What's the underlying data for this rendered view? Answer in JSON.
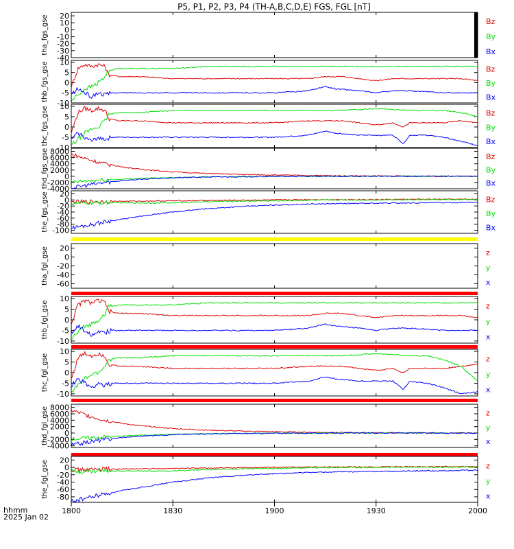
{
  "title": "P5, P1, P2, P3, P4 (TH-A,B,C,D,E) FGS, FGL [nT]",
  "colors": {
    "x": "#0000ff",
    "y": "#00dd00",
    "z": "#dd0000",
    "flag_yellow": "#ffff00",
    "flag_red": "#ff0000"
  },
  "x_axis": {
    "ticks": [
      {
        "label": "1800",
        "minutes": 0
      },
      {
        "label": "1830",
        "minutes": 30
      },
      {
        "label": "1900",
        "minutes": 60
      },
      {
        "label": "1930",
        "minutes": 90
      },
      {
        "label": "2000",
        "minutes": 120
      }
    ],
    "range_minutes": [
      0,
      120
    ],
    "label_units": "hhmm",
    "label_date": "2025 Jan 02"
  },
  "chart_data": [
    {
      "type": "line",
      "ylabel": "tha_fgs_gse",
      "ylim": [
        -40,
        25
      ],
      "yticks": [
        20,
        10,
        0,
        -10,
        -20,
        -30,
        -40
      ],
      "legend": [
        "Bz",
        "By",
        "Bx"
      ],
      "no_data": true,
      "series": []
    },
    {
      "type": "line",
      "ylabel": "thb_fgs_gse",
      "ylim": [
        -10,
        11
      ],
      "yticks": [
        10,
        5,
        0,
        -5,
        -10
      ],
      "legend": [
        "Bz",
        "By",
        "Bx"
      ],
      "series": [
        {
          "comp": "z",
          "x": [
            0,
            2,
            4,
            6,
            8,
            10,
            11,
            14,
            20,
            30,
            40,
            50,
            60,
            70,
            75,
            80,
            85,
            90,
            95,
            100,
            105,
            110,
            115,
            120
          ],
          "y": [
            -2,
            7,
            9,
            8,
            9,
            8,
            4,
            3,
            3,
            2,
            2,
            2,
            2,
            2,
            3,
            3,
            2,
            1,
            2,
            2,
            2,
            2,
            2,
            1
          ]
        },
        {
          "comp": "y",
          "x": [
            0,
            2,
            4,
            6,
            8,
            10,
            11,
            14,
            20,
            30,
            40,
            50,
            60,
            70,
            80,
            90,
            100,
            110,
            120
          ],
          "y": [
            -9,
            -6,
            -3,
            -2,
            0,
            3,
            6,
            7,
            7,
            7,
            8,
            8,
            8,
            8,
            8,
            8,
            8,
            8,
            8
          ]
        },
        {
          "comp": "x",
          "x": [
            0,
            2,
            4,
            6,
            8,
            10,
            12,
            20,
            30,
            40,
            50,
            60,
            70,
            75,
            78,
            85,
            90,
            95,
            100,
            110,
            115,
            120
          ],
          "y": [
            -6,
            -3,
            -5,
            -7,
            -5,
            -6,
            -5,
            -5,
            -5,
            -5,
            -5,
            -5,
            -4,
            -2,
            -3,
            -4,
            -5,
            -4,
            -4,
            -5,
            -5,
            -5
          ]
        }
      ]
    },
    {
      "type": "line",
      "ylabel": "thc_fgs_gse",
      "ylim": [
        -10,
        11
      ],
      "yticks": [
        10,
        5,
        0,
        -5,
        -10
      ],
      "legend": [
        "Bz",
        "By",
        "Bx"
      ],
      "series": [
        {
          "comp": "z",
          "x": [
            0,
            2,
            4,
            6,
            8,
            10,
            11,
            14,
            20,
            30,
            40,
            50,
            60,
            70,
            80,
            85,
            90,
            95,
            98,
            100,
            105,
            110,
            115,
            120
          ],
          "y": [
            -3,
            7,
            9,
            8,
            9,
            8,
            4,
            3,
            3,
            2,
            2,
            2,
            2,
            3,
            3,
            2,
            1,
            2,
            0,
            2,
            2,
            2,
            3,
            2
          ]
        },
        {
          "comp": "y",
          "x": [
            0,
            2,
            4,
            6,
            8,
            10,
            11,
            14,
            20,
            30,
            40,
            50,
            60,
            70,
            80,
            90,
            100,
            105,
            110,
            115,
            120
          ],
          "y": [
            -9,
            -6,
            -3,
            -1,
            0,
            3,
            6,
            7,
            7,
            8,
            8,
            8,
            8,
            8,
            8,
            9,
            8,
            8,
            8,
            7,
            5
          ]
        },
        {
          "comp": "x",
          "x": [
            0,
            2,
            4,
            6,
            8,
            10,
            12,
            20,
            30,
            40,
            50,
            60,
            70,
            75,
            78,
            85,
            90,
            95,
            98,
            100,
            105,
            110,
            115,
            120
          ],
          "y": [
            -6,
            -3,
            -5,
            -7,
            -5,
            -6,
            -5,
            -5,
            -5,
            -5,
            -5,
            -5,
            -4,
            -2,
            -3,
            -4,
            -4,
            -4,
            -8,
            -4,
            -4,
            -5,
            -7,
            -9
          ]
        }
      ]
    },
    {
      "type": "line",
      "ylabel": "thd_fgs_gse",
      "ylim": [
        -4000,
        9000
      ],
      "yticks": [
        8000,
        6000,
        4000,
        2000,
        0,
        -2000,
        -4000
      ],
      "legend": [
        "Bz",
        "By",
        "Bx"
      ],
      "series": [
        {
          "comp": "z",
          "x": [
            0,
            5,
            10,
            15,
            20,
            30,
            40,
            50,
            60,
            70,
            80,
            90,
            100,
            110,
            120
          ],
          "y": [
            7100,
            5400,
            4000,
            3000,
            2300,
            1400,
            900,
            600,
            400,
            250,
            150,
            100,
            50,
            20,
            0
          ]
        },
        {
          "comp": "y",
          "x": [
            0,
            10,
            20,
            30,
            40,
            60,
            80,
            100,
            120
          ],
          "y": [
            -1900,
            -1200,
            -700,
            -400,
            -200,
            -50,
            0,
            0,
            0
          ]
        },
        {
          "comp": "x",
          "x": [
            0,
            5,
            10,
            15,
            20,
            30,
            40,
            60,
            80,
            100,
            120
          ],
          "y": [
            -3800,
            -2800,
            -2000,
            -1400,
            -1000,
            -500,
            -250,
            -60,
            -10,
            0,
            0
          ]
        }
      ]
    },
    {
      "type": "line",
      "ylabel": "the_fgs_gse",
      "ylim": [
        -110,
        30
      ],
      "yticks": [
        20,
        0,
        -20,
        -40,
        -60,
        -80,
        -100
      ],
      "legend": [
        "Bz",
        "By",
        "Bx"
      ],
      "series": [
        {
          "comp": "z",
          "x": [
            0,
            10,
            20,
            30,
            40,
            50,
            60,
            70,
            80,
            90,
            100,
            110,
            120
          ],
          "y": [
            -7,
            -5,
            -4,
            -3,
            -2,
            -1,
            0,
            1,
            1,
            1,
            2,
            2,
            2
          ]
        },
        {
          "comp": "y",
          "x": [
            0,
            10,
            20,
            30,
            40,
            50,
            60,
            70,
            80,
            90,
            100,
            110,
            120
          ],
          "y": [
            -12,
            -9,
            -10,
            -10,
            -6,
            -4,
            -3,
            -1,
            0,
            0,
            1,
            1,
            1
          ]
        },
        {
          "comp": "x",
          "x": [
            0,
            5,
            10,
            20,
            30,
            40,
            50,
            60,
            70,
            80,
            90,
            100,
            110,
            120
          ],
          "y": [
            -92,
            -83,
            -72,
            -55,
            -40,
            -29,
            -22,
            -17,
            -14,
            -12,
            -11,
            -10,
            -9,
            -8
          ]
        }
      ]
    },
    {
      "type": "line",
      "ylabel": "tha_fgl_gse",
      "ylim": [
        -70,
        30
      ],
      "yticks": [
        20,
        0,
        -20,
        -40,
        -60
      ],
      "legend": [
        "z",
        "y",
        "x"
      ],
      "flag": "yellow",
      "no_data": true,
      "series": []
    },
    {
      "type": "line",
      "ylabel": "thb_fgl_gse",
      "ylim": [
        -11,
        11
      ],
      "yticks": [
        10,
        5,
        0,
        -5,
        -10
      ],
      "legend": [
        "z",
        "y",
        "x"
      ],
      "flag": "red",
      "series": [
        {
          "comp": "z",
          "x": [
            0,
            2,
            4,
            6,
            8,
            10,
            11,
            14,
            20,
            30,
            40,
            50,
            60,
            70,
            75,
            80,
            85,
            90,
            95,
            100,
            105,
            110,
            115,
            120
          ],
          "y": [
            -2,
            7,
            9,
            8,
            9,
            8,
            4,
            3,
            3,
            2,
            2,
            2,
            2,
            2,
            3,
            3,
            2,
            1,
            2,
            2,
            2,
            2,
            2,
            1
          ]
        },
        {
          "comp": "y",
          "x": [
            0,
            2,
            4,
            6,
            8,
            10,
            11,
            14,
            20,
            30,
            40,
            50,
            60,
            70,
            80,
            90,
            100,
            110,
            120
          ],
          "y": [
            -9,
            -6,
            -3,
            -2,
            0,
            3,
            6,
            7,
            7,
            7,
            8,
            8,
            8,
            8,
            8,
            8,
            8,
            8,
            8
          ]
        },
        {
          "comp": "x",
          "x": [
            0,
            2,
            4,
            6,
            8,
            10,
            12,
            20,
            30,
            40,
            50,
            60,
            70,
            75,
            78,
            85,
            90,
            95,
            100,
            110,
            115,
            120
          ],
          "y": [
            -6,
            -3,
            -5,
            -7,
            -5,
            -6,
            -5,
            -5,
            -5,
            -5,
            -5,
            -5,
            -4,
            -2,
            -3,
            -4,
            -5,
            -4,
            -4,
            -5,
            -5,
            -5
          ]
        }
      ]
    },
    {
      "type": "line",
      "ylabel": "thc_fgl_gse",
      "ylim": [
        -11,
        11
      ],
      "yticks": [
        10,
        5,
        0,
        -5,
        -10
      ],
      "legend": [
        "z",
        "y",
        "x"
      ],
      "flag": "red",
      "series": [
        {
          "comp": "z",
          "x": [
            0,
            2,
            4,
            6,
            8,
            10,
            11,
            14,
            20,
            30,
            40,
            50,
            60,
            70,
            80,
            85,
            90,
            95,
            98,
            100,
            105,
            110,
            115,
            120
          ],
          "y": [
            -3,
            7,
            9,
            8,
            9,
            8,
            4,
            3,
            3,
            2,
            2,
            2,
            2,
            3,
            3,
            2,
            1,
            2,
            0,
            2,
            2,
            2,
            3,
            4
          ]
        },
        {
          "comp": "y",
          "x": [
            0,
            2,
            4,
            6,
            8,
            10,
            11,
            14,
            20,
            30,
            40,
            50,
            60,
            70,
            80,
            90,
            100,
            105,
            110,
            115,
            120
          ],
          "y": [
            -9,
            -6,
            -3,
            -1,
            0,
            3,
            6,
            7,
            7,
            8,
            8,
            8,
            8,
            8,
            8,
            9,
            8,
            8,
            6,
            3,
            -4
          ]
        },
        {
          "comp": "x",
          "x": [
            0,
            2,
            4,
            6,
            8,
            10,
            12,
            20,
            30,
            40,
            50,
            60,
            70,
            75,
            78,
            85,
            90,
            95,
            98,
            100,
            105,
            110,
            115,
            120
          ],
          "y": [
            -6,
            -3,
            -5,
            -7,
            -5,
            -6,
            -5,
            -5,
            -5,
            -5,
            -5,
            -5,
            -4,
            -2,
            -3,
            -4,
            -4,
            -4,
            -8,
            -4,
            -5,
            -7,
            -10,
            -9
          ]
        }
      ]
    },
    {
      "type": "line",
      "ylabel": "thd_fgl_gse",
      "ylim": [
        -4500,
        9000
      ],
      "yticks": [
        8000,
        6000,
        4000,
        2000,
        0,
        -2000,
        -4000
      ],
      "legend": [
        "z",
        "y",
        "x"
      ],
      "flag": "red",
      "series": [
        {
          "comp": "z",
          "x": [
            0,
            5,
            10,
            15,
            20,
            30,
            40,
            50,
            60,
            70,
            80,
            90,
            100,
            110,
            120
          ],
          "y": [
            7100,
            5400,
            4000,
            3000,
            2300,
            1400,
            900,
            600,
            400,
            250,
            150,
            100,
            50,
            20,
            0
          ]
        },
        {
          "comp": "y",
          "x": [
            0,
            10,
            20,
            30,
            40,
            60,
            80,
            100,
            120
          ],
          "y": [
            -1900,
            -1200,
            -700,
            -400,
            -200,
            -50,
            0,
            0,
            0
          ]
        },
        {
          "comp": "x",
          "x": [
            0,
            5,
            10,
            15,
            20,
            30,
            40,
            60,
            80,
            100,
            120
          ],
          "y": [
            -3800,
            -2800,
            -2000,
            -1400,
            -1000,
            -500,
            -250,
            -60,
            -10,
            0,
            0
          ]
        }
      ]
    },
    {
      "type": "line",
      "ylabel": "the_fgl_gse",
      "ylim": [
        -95,
        30
      ],
      "yticks": [
        20,
        0,
        -20,
        -40,
        -60,
        -80
      ],
      "legend": [
        "z",
        "y",
        "x"
      ],
      "flag": "red",
      "series": [
        {
          "comp": "z",
          "x": [
            0,
            10,
            20,
            30,
            40,
            50,
            60,
            70,
            80,
            90,
            100,
            110,
            120
          ],
          "y": [
            -7,
            -5,
            -4,
            -3,
            -2,
            -1,
            0,
            1,
            1,
            1,
            2,
            2,
            2
          ]
        },
        {
          "comp": "y",
          "x": [
            0,
            10,
            20,
            30,
            40,
            50,
            60,
            70,
            80,
            90,
            100,
            110,
            120
          ],
          "y": [
            -12,
            -9,
            -10,
            -10,
            -6,
            -4,
            -3,
            -1,
            0,
            0,
            1,
            1,
            1
          ]
        },
        {
          "comp": "x",
          "x": [
            0,
            5,
            10,
            20,
            30,
            40,
            50,
            60,
            70,
            80,
            90,
            100,
            110,
            120
          ],
          "y": [
            -92,
            -83,
            -72,
            -55,
            -40,
            -29,
            -22,
            -17,
            -14,
            -12,
            -11,
            -10,
            -9,
            -8
          ]
        }
      ]
    }
  ]
}
